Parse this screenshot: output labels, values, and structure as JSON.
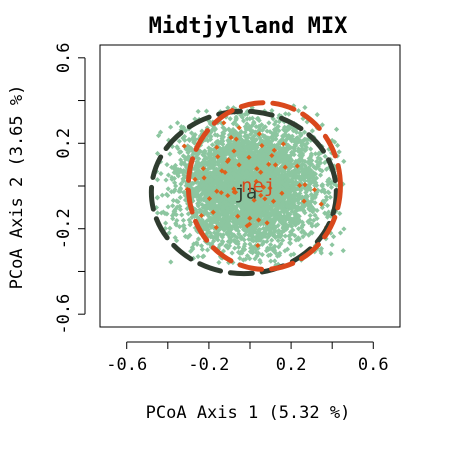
{
  "chart_data": {
    "type": "scatter",
    "title": "Midtjylland MIX",
    "xlabel": "PCoA Axis 1 (5.32 %)",
    "ylabel": "PCoA Axis 2 (3.65 %)",
    "xlim": [
      -0.73,
      0.73
    ],
    "ylim": [
      -0.66,
      0.66
    ],
    "x_ticks": [
      -0.6,
      -0.2,
      0.2,
      0.6
    ],
    "x_tick_labels": [
      "-0.6",
      "-0.2",
      "0.2",
      "0.6"
    ],
    "y_ticks": [
      -0.6,
      -0.2,
      0.2,
      0.6
    ],
    "y_tick_labels": [
      "-0.6",
      "-0.2",
      "0.2",
      "0.6"
    ],
    "grid": false,
    "legend": "none",
    "series": [
      {
        "name": "ja",
        "color": "#8cc6a0",
        "point_count": 4000,
        "center": [
          0.0,
          0.0
        ],
        "spread": [
          0.17,
          0.14
        ],
        "ellipse": {
          "center": [
            -0.03,
            -0.03
          ],
          "radii": [
            0.45,
            0.38
          ]
        },
        "ellipse_color": "#2f3c2f",
        "label_position": [
          -0.02,
          -0.03
        ]
      },
      {
        "name": "nej",
        "color": "#e0601a",
        "point_count": 60,
        "center": [
          0.02,
          0.02
        ],
        "spread": [
          0.16,
          0.12
        ],
        "ellipse": {
          "center": [
            0.07,
            0.0
          ],
          "radii": [
            0.37,
            0.39
          ]
        },
        "ellipse_color": "#d9481c",
        "label_position": [
          0.04,
          0.0
        ]
      }
    ]
  }
}
